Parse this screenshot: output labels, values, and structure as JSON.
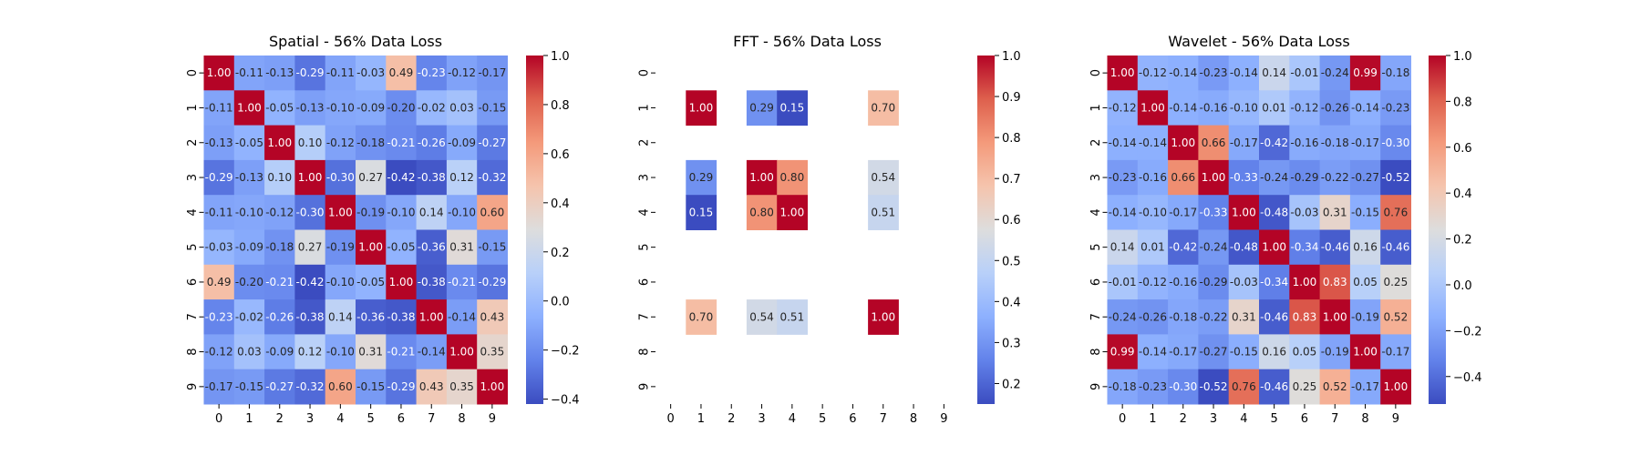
{
  "chart_data": [
    {
      "type": "heatmap",
      "title": "Spatial - 56% Data Loss",
      "x": [
        "0",
        "1",
        "2",
        "3",
        "4",
        "5",
        "6",
        "7",
        "8",
        "9"
      ],
      "y": [
        "0",
        "1",
        "2",
        "3",
        "4",
        "5",
        "6",
        "7",
        "8",
        "9"
      ],
      "colorbar": {
        "min": -0.42,
        "max": 1.0,
        "ticks": [
          "-0.4",
          "-0.2",
          "0.0",
          "0.2",
          "0.4",
          "0.6",
          "0.8",
          "1.0"
        ]
      },
      "colormap": "coolwarm",
      "values": [
        [
          1.0,
          -0.11,
          -0.13,
          -0.29,
          -0.11,
          -0.03,
          0.49,
          -0.23,
          -0.12,
          -0.17
        ],
        [
          -0.11,
          1.0,
          -0.05,
          -0.13,
          -0.1,
          -0.09,
          -0.2,
          -0.02,
          0.03,
          -0.15
        ],
        [
          -0.13,
          -0.05,
          1.0,
          0.1,
          -0.12,
          -0.18,
          -0.21,
          -0.26,
          -0.09,
          -0.27
        ],
        [
          -0.29,
          -0.13,
          0.1,
          1.0,
          -0.3,
          0.27,
          -0.42,
          -0.38,
          0.12,
          -0.32
        ],
        [
          -0.11,
          -0.1,
          -0.12,
          -0.3,
          1.0,
          -0.19,
          -0.1,
          0.14,
          -0.1,
          0.6
        ],
        [
          -0.03,
          -0.09,
          -0.18,
          0.27,
          -0.19,
          1.0,
          -0.05,
          -0.36,
          0.31,
          -0.15
        ],
        [
          0.49,
          -0.2,
          -0.21,
          -0.42,
          -0.1,
          -0.05,
          1.0,
          -0.38,
          -0.21,
          -0.29
        ],
        [
          -0.23,
          -0.02,
          -0.26,
          -0.38,
          0.14,
          -0.36,
          -0.38,
          1.0,
          -0.14,
          0.43
        ],
        [
          -0.12,
          0.03,
          -0.09,
          0.12,
          -0.1,
          0.31,
          -0.21,
          -0.14,
          1.0,
          0.35
        ],
        [
          -0.17,
          -0.15,
          -0.27,
          -0.32,
          0.6,
          -0.15,
          -0.29,
          0.43,
          0.35,
          1.0
        ]
      ]
    },
    {
      "type": "heatmap",
      "title": "FFT - 56% Data Loss",
      "x": [
        "0",
        "1",
        "2",
        "3",
        "4",
        "5",
        "6",
        "7",
        "8",
        "9"
      ],
      "y": [
        "0",
        "1",
        "2",
        "3",
        "4",
        "5",
        "6",
        "7",
        "8",
        "9"
      ],
      "colorbar": {
        "min": 0.15,
        "max": 1.0,
        "ticks": [
          "0.2",
          "0.3",
          "0.4",
          "0.5",
          "0.6",
          "0.7",
          "0.8",
          "0.9",
          "1.0"
        ]
      },
      "colormap": "coolwarm",
      "values": [
        [
          null,
          null,
          null,
          null,
          null,
          null,
          null,
          null,
          null,
          null
        ],
        [
          null,
          1.0,
          null,
          0.29,
          0.15,
          null,
          null,
          0.7,
          null,
          null
        ],
        [
          null,
          null,
          null,
          null,
          null,
          null,
          null,
          null,
          null,
          null
        ],
        [
          null,
          0.29,
          null,
          1.0,
          0.8,
          null,
          null,
          0.54,
          null,
          null
        ],
        [
          null,
          0.15,
          null,
          0.8,
          1.0,
          null,
          null,
          0.51,
          null,
          null
        ],
        [
          null,
          null,
          null,
          null,
          null,
          null,
          null,
          null,
          null,
          null
        ],
        [
          null,
          null,
          null,
          null,
          null,
          null,
          null,
          null,
          null,
          null
        ],
        [
          null,
          0.7,
          null,
          0.54,
          0.51,
          null,
          null,
          1.0,
          null,
          null
        ],
        [
          null,
          null,
          null,
          null,
          null,
          null,
          null,
          null,
          null,
          null
        ],
        [
          null,
          null,
          null,
          null,
          null,
          null,
          null,
          null,
          null,
          null
        ]
      ]
    },
    {
      "type": "heatmap",
      "title": "Wavelet - 56% Data Loss",
      "x": [
        "0",
        "1",
        "2",
        "3",
        "4",
        "5",
        "6",
        "7",
        "8",
        "9"
      ],
      "y": [
        "0",
        "1",
        "2",
        "3",
        "4",
        "5",
        "6",
        "7",
        "8",
        "9"
      ],
      "colorbar": {
        "min": -0.52,
        "max": 1.0,
        "ticks": [
          "-0.4",
          "-0.2",
          "0.0",
          "0.2",
          "0.4",
          "0.6",
          "0.8",
          "1.0"
        ]
      },
      "colormap": "coolwarm",
      "values": [
        [
          1.0,
          -0.12,
          -0.14,
          -0.23,
          -0.14,
          0.14,
          -0.01,
          -0.24,
          0.99,
          -0.18
        ],
        [
          -0.12,
          1.0,
          -0.14,
          -0.16,
          -0.1,
          0.01,
          -0.12,
          -0.26,
          -0.14,
          -0.23
        ],
        [
          -0.14,
          -0.14,
          1.0,
          0.66,
          -0.17,
          -0.42,
          -0.16,
          -0.18,
          -0.17,
          -0.3
        ],
        [
          -0.23,
          -0.16,
          0.66,
          1.0,
          -0.33,
          -0.24,
          -0.29,
          -0.22,
          -0.27,
          -0.52
        ],
        [
          -0.14,
          -0.1,
          -0.17,
          -0.33,
          1.0,
          -0.48,
          -0.03,
          0.31,
          -0.15,
          0.76
        ],
        [
          0.14,
          0.01,
          -0.42,
          -0.24,
          -0.48,
          1.0,
          -0.34,
          -0.46,
          0.16,
          -0.46
        ],
        [
          -0.01,
          -0.12,
          -0.16,
          -0.29,
          -0.03,
          -0.34,
          1.0,
          0.83,
          0.05,
          0.25
        ],
        [
          -0.24,
          -0.26,
          -0.18,
          -0.22,
          0.31,
          -0.46,
          0.83,
          1.0,
          -0.19,
          0.52
        ],
        [
          0.99,
          -0.14,
          -0.17,
          -0.27,
          -0.15,
          0.16,
          0.05,
          -0.19,
          1.0,
          -0.17
        ],
        [
          -0.18,
          -0.23,
          -0.3,
          -0.52,
          0.76,
          -0.46,
          0.25,
          0.52,
          -0.17,
          1.0
        ]
      ]
    }
  ]
}
